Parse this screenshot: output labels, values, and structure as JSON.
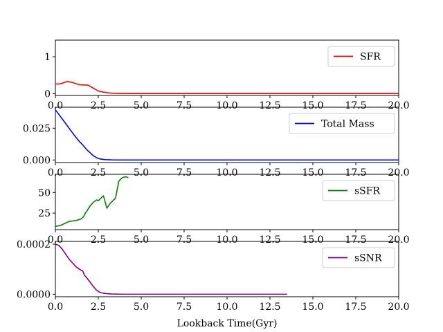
{
  "figure": {
    "xlabel": "Lookback Time(Gyr)"
  },
  "chart_data": [
    {
      "type": "line",
      "id": "sfr",
      "series": [
        {
          "name": "SFR",
          "color": "#ff0000",
          "x": [
            0,
            0.2,
            0.4,
            0.7,
            1.0,
            1.4,
            1.9,
            2.2,
            2.5,
            2.8,
            3.1,
            3.4,
            3.8,
            4.5,
            6,
            10,
            15,
            20
          ],
          "y": [
            0.26,
            0.26,
            0.28,
            0.33,
            0.3,
            0.24,
            0.23,
            0.15,
            0.07,
            0.04,
            0.02,
            0.01,
            0.005,
            0.003,
            0.002,
            0.002,
            0.002,
            0.002
          ]
        }
      ],
      "xlim": [
        0,
        20
      ],
      "ylim": [
        -0.05,
        1.45
      ],
      "xticks": [
        "0.0",
        "2.5",
        "5.0",
        "7.5",
        "10.0",
        "12.5",
        "15.0",
        "17.5",
        "20.0"
      ],
      "yticks": [
        {
          "value": 0,
          "label": "0"
        },
        {
          "value": 1,
          "label": "1"
        }
      ],
      "legend": "upper-right"
    },
    {
      "type": "line",
      "id": "total-mass",
      "series": [
        {
          "name": "Total Mass",
          "color": "#0000ff",
          "x": [
            0,
            0.25,
            0.5,
            0.8,
            1.1,
            1.4,
            1.6,
            1.8,
            2.0,
            2.2,
            2.4,
            2.6,
            2.9,
            3.3,
            4.0,
            5,
            10,
            15,
            20
          ],
          "y": [
            0.0395,
            0.035,
            0.0305,
            0.025,
            0.0195,
            0.0145,
            0.0118,
            0.0085,
            0.006,
            0.0035,
            0.0018,
            0.0008,
            0.0003,
            0.0001,
            3e-05,
            1e-05,
            0,
            0,
            0
          ]
        }
      ],
      "xlim": [
        0,
        20
      ],
      "ylim": [
        -0.002,
        0.0415
      ],
      "xticks": [
        "0.0",
        "2.5",
        "5.0",
        "7.5",
        "10.0",
        "12.5",
        "15.0",
        "17.5",
        "20.0"
      ],
      "yticks": [
        {
          "value": 0,
          "label": "0.000"
        },
        {
          "value": 0.025,
          "label": "0.025"
        }
      ],
      "legend": "upper-right"
    },
    {
      "type": "line",
      "id": "ssfr",
      "series": [
        {
          "name": "sSFR",
          "color": "#008000",
          "x": [
            0,
            0.3,
            0.5,
            0.8,
            1.2,
            1.5,
            1.65,
            1.75,
            1.85,
            2.0,
            2.2,
            2.4,
            2.5,
            2.6,
            2.8,
            3.0,
            3.2,
            3.5,
            3.7,
            3.9,
            4.1,
            4.25
          ],
          "y": [
            9,
            10,
            12,
            15,
            16,
            18,
            21,
            25,
            28,
            33,
            38,
            41,
            40,
            42,
            46,
            31,
            37,
            43,
            64,
            68,
            69,
            68
          ]
        }
      ],
      "xlim": [
        0,
        20
      ],
      "ylim": [
        5,
        72
      ],
      "xticks": [
        "0.0",
        "2.5",
        "5.0",
        "7.5",
        "10.0",
        "12.5",
        "15.0",
        "17.5",
        "20.0"
      ],
      "yticks": [
        {
          "value": 25,
          "label": "25"
        },
        {
          "value": 50,
          "label": "50"
        }
      ],
      "legend": "upper-right"
    },
    {
      "type": "line",
      "id": "ssnr",
      "series": [
        {
          "name": "sSNR",
          "color": "#800080",
          "x": [
            0,
            0.2,
            0.4,
            0.6,
            0.8,
            1.0,
            1.2,
            1.4,
            1.6,
            1.7,
            1.8,
            2.0,
            2.2,
            2.4,
            2.6,
            2.9,
            3.3,
            4.0,
            5,
            8,
            13.5
          ],
          "y": [
            0.0002,
            0.000195,
            0.00018,
            0.00016,
            0.00014,
            0.000125,
            0.00011,
            0.0001,
            9.2e-05,
            7.5e-05,
            6.8e-05,
            5e-05,
            3.2e-05,
            1.6e-05,
            7e-06,
            3e-06,
            1e-06,
            0,
            0,
            0,
            0
          ]
        }
      ],
      "xlim": [
        0,
        20
      ],
      "ylim": [
        -1e-05,
        0.000211
      ],
      "xticks": [
        "0.0",
        "2.5",
        "5.0",
        "7.5",
        "10.0",
        "12.5",
        "15.0",
        "17.5",
        "20.0"
      ],
      "yticks": [
        {
          "value": 0,
          "label": "0.0000"
        },
        {
          "value": 0.0002,
          "label": "0.0002"
        }
      ],
      "legend": "upper-right"
    }
  ]
}
